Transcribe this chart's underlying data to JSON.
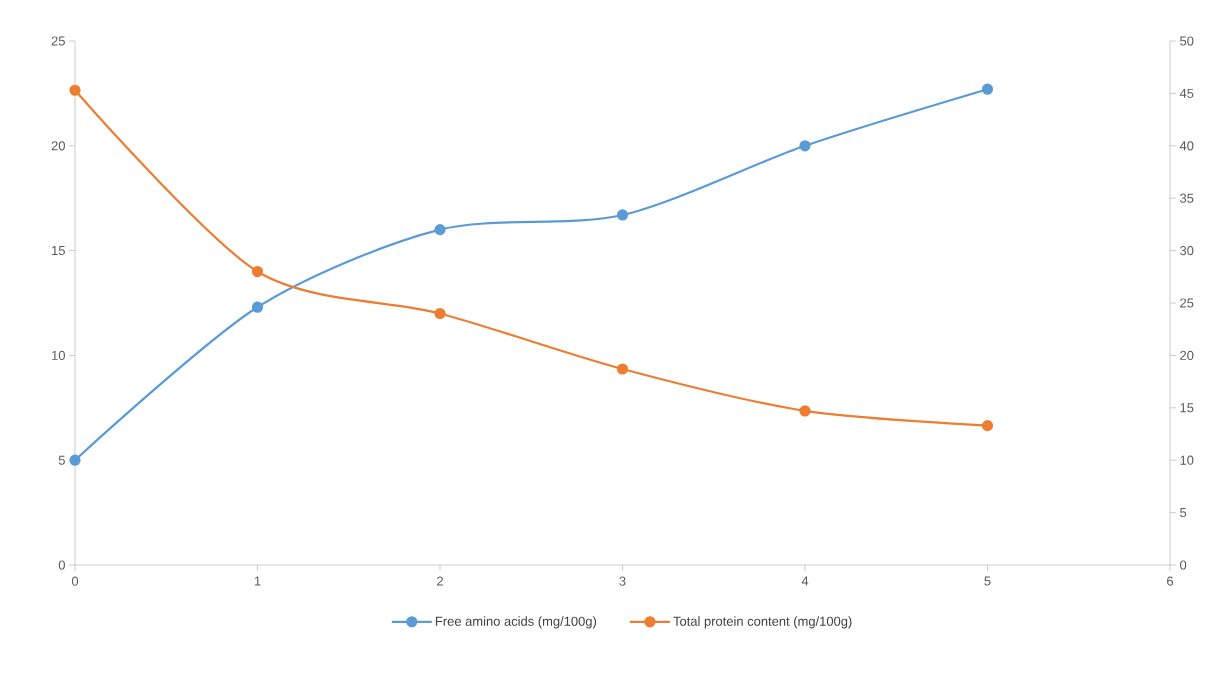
{
  "chart_data": {
    "type": "line",
    "x": [
      0,
      1,
      2,
      3,
      4,
      5
    ],
    "xlim": [
      0,
      6
    ],
    "xticks": [
      0,
      1,
      2,
      3,
      4,
      5,
      6
    ],
    "ylim": [
      0,
      25
    ],
    "yticks": [
      0,
      5,
      10,
      15,
      20,
      25
    ],
    "y2lim": [
      0,
      50
    ],
    "y2ticks": [
      0,
      5,
      10,
      15,
      20,
      25,
      30,
      35,
      40,
      45,
      50
    ],
    "series": [
      {
        "name": "Free amino acids (mg/100g)",
        "color": "#5b9bd5",
        "values": [
          5,
          12.3,
          16,
          16.7,
          20,
          22.7
        ]
      },
      {
        "name": "Total protein content (mg/100g)",
        "color": "#ed7d31",
        "axis": "y2",
        "values": [
          45.3,
          28,
          24,
          18.7,
          14.7,
          13.3
        ]
      }
    ],
    "legend": "bottom",
    "marker": "circle",
    "line_style": "solid",
    "grid": false
  }
}
